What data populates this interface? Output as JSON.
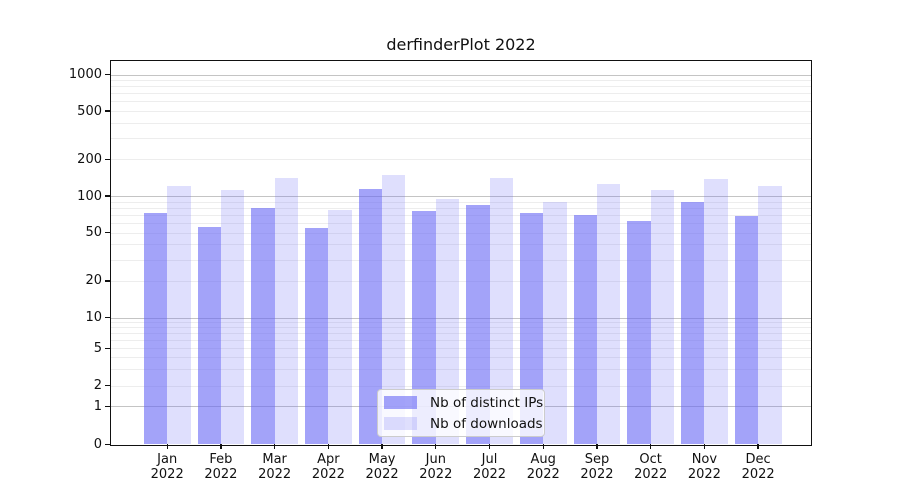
{
  "chart_data": {
    "type": "bar",
    "title": "derfinderPlot 2022",
    "categories": [
      "Jan",
      "Feb",
      "Mar",
      "Apr",
      "May",
      "Jun",
      "Jul",
      "Aug",
      "Sep",
      "Oct",
      "Nov",
      "Dec"
    ],
    "category_year_line": "2022",
    "series": [
      {
        "name": "Nb of distinct IPs",
        "color": "#a6a6f7",
        "values": [
          72,
          56,
          79,
          55,
          114,
          75,
          84,
          72,
          70,
          62,
          90,
          69
        ]
      },
      {
        "name": "Nb of downloads",
        "color": "#dedefb",
        "values": [
          121,
          112,
          141,
          77,
          149,
          94,
          141,
          89,
          125,
          113,
          138,
          120
        ]
      }
    ],
    "xlabel": "",
    "ylabel": "",
    "yscale": "log-above-10-compressed-below",
    "yticks": [
      0,
      1,
      2,
      5,
      10,
      20,
      50,
      100,
      200,
      500,
      1000
    ],
    "ylim": [
      0,
      1300
    ],
    "grid": "horizontal major and minor gridlines",
    "legend_position": "lower center inside plot"
  }
}
